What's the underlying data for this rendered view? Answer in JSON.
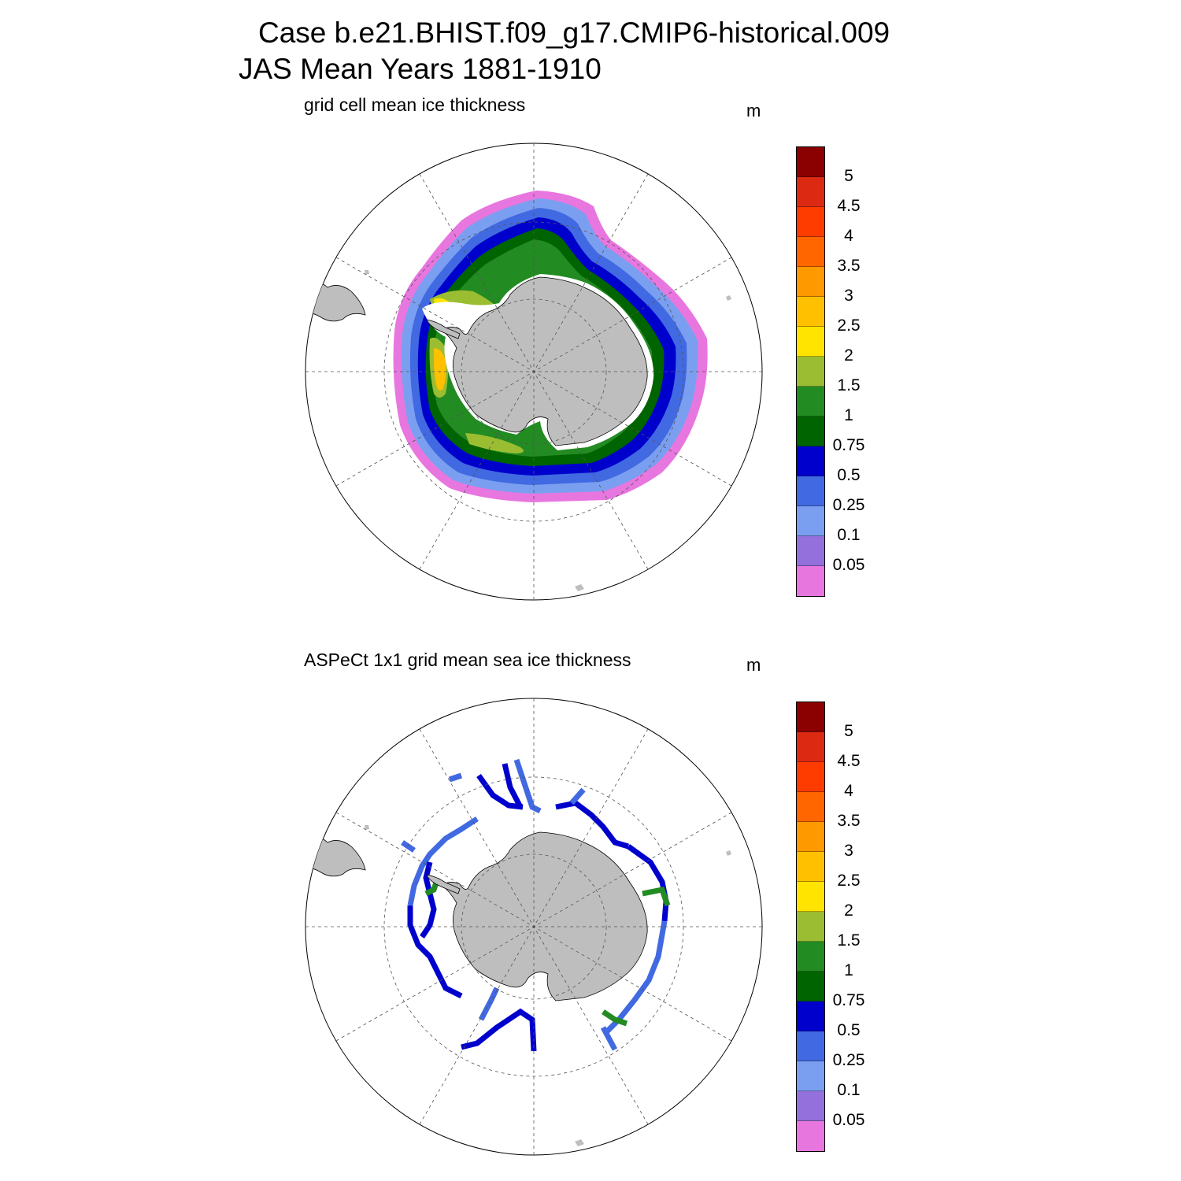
{
  "title": {
    "line1": "Case b.e21.BHIST.f09_g17.CMIP6-historical.009",
    "line2": "JAS Mean   Years 1881-1910"
  },
  "panels": [
    {
      "id": "model",
      "label": "grid cell mean ice thickness",
      "units": "m"
    },
    {
      "id": "obs",
      "label": "ASPeCt 1x1 grid mean sea ice thickness",
      "units": "m"
    }
  ],
  "colorbar": {
    "levels": [
      "5",
      "4.5",
      "4",
      "3.5",
      "3",
      "2.5",
      "2",
      "1.5",
      "1",
      "0.75",
      "0.5",
      "0.25",
      "0.1",
      "0.05"
    ],
    "colors_top_to_bottom": [
      "#8b0000",
      "#dc2a12",
      "#ff3c00",
      "#ff6600",
      "#ff9900",
      "#ffc000",
      "#ffe400",
      "#9abd32",
      "#228b22",
      "#006400",
      "#0000cd",
      "#4169e1",
      "#7b9ff0",
      "#9370db",
      "#e876df"
    ]
  },
  "colors": {
    "land": "#bebebe",
    "grid": "#555555",
    "ice_shelf": "#ffffff"
  }
}
